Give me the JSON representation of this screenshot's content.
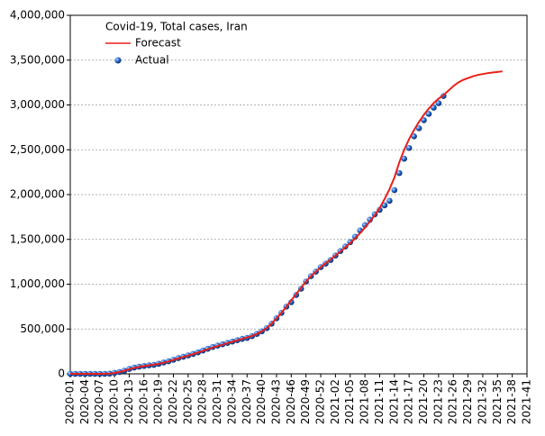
{
  "chart_data": {
    "type": "line_scatter",
    "title": "Covid-19, Total cases, Iran",
    "categories": [
      "2020-01",
      null,
      null,
      "2020-04",
      null,
      null,
      "2020-07",
      null,
      null,
      "2020-10",
      null,
      null,
      "2020-13",
      null,
      null,
      "2020-16",
      null,
      null,
      "2020-19",
      null,
      null,
      "2020-22",
      null,
      null,
      "2020-25",
      null,
      null,
      "2020-28",
      null,
      null,
      "2020-31",
      null,
      null,
      "2020-34",
      null,
      null,
      "2020-37",
      null,
      null,
      "2020-40",
      null,
      null,
      "2020-43",
      null,
      null,
      "2020-46",
      null,
      null,
      "2020-49",
      null,
      null,
      "2020-52",
      null,
      null,
      "2021-02",
      null,
      null,
      "2021-05",
      null,
      null,
      "2021-08",
      null,
      null,
      "2021-11",
      null,
      null,
      "2021-14",
      null,
      null,
      "2021-17",
      null,
      null,
      "2021-20",
      null,
      null,
      "2021-23",
      null,
      null,
      "2021-26",
      null,
      null,
      "2021-29",
      null,
      null,
      "2021-32",
      null,
      null,
      "2021-35",
      null,
      null,
      "2021-38",
      null,
      null,
      "2021-41"
    ],
    "series": [
      {
        "name": "Forecast",
        "kind": "line",
        "color": "#e8201a",
        "values": [
          0,
          0,
          0,
          0,
          0,
          0,
          0,
          0,
          2000,
          10000,
          20000,
          34000,
          52000,
          66000,
          78000,
          87000,
          95000,
          102000,
          112000,
          125000,
          139000,
          155000,
          172000,
          188000,
          204000,
          220000,
          238000,
          256000,
          275000,
          293000,
          310000,
          326000,
          342000,
          358000,
          374000,
          390000,
          405000,
          423000,
          445000,
          475000,
          510000,
          560000,
          620000,
          680000,
          750000,
          820000,
          890000,
          960000,
          1030000,
          1090000,
          1140000,
          1190000,
          1235000,
          1275000,
          1320000,
          1365000,
          1410000,
          1460000,
          1510000,
          1570000,
          1630000,
          1700000,
          1770000,
          1850000,
          1950000,
          2060000,
          2190000,
          2360000,
          2500000,
          2620000,
          2720000,
          2810000,
          2890000,
          2960000,
          3020000,
          3070000,
          3110000,
          3160000,
          3210000,
          3250000,
          3280000,
          3300000,
          3320000,
          3335000,
          3345000,
          3355000,
          3362000,
          3368000,
          3375000,
          null,
          null,
          null,
          null,
          null
        ]
      },
      {
        "name": "Actual",
        "kind": "scatter",
        "color": "#2a6fd6",
        "values": [
          0,
          0,
          0,
          0,
          0,
          0,
          0,
          0,
          2000,
          11000,
          20000,
          35000,
          55000,
          70000,
          80000,
          88000,
          95000,
          100000,
          112000,
          126000,
          140000,
          157000,
          175000,
          190000,
          205000,
          222000,
          240000,
          260000,
          280000,
          300000,
          315000,
          330000,
          345000,
          360000,
          375000,
          390000,
          400000,
          420000,
          445000,
          475000,
          510000,
          560000,
          620000,
          680000,
          750000,
          800000,
          880000,
          950000,
          1030000,
          1090000,
          1140000,
          1190000,
          1230000,
          1270000,
          1320000,
          1370000,
          1420000,
          1470000,
          1530000,
          1600000,
          1660000,
          1720000,
          1780000,
          1830000,
          1880000,
          1930000,
          2050000,
          2240000,
          2400000,
          2520000,
          2650000,
          2740000,
          2830000,
          2900000,
          2970000,
          3020000,
          3100000,
          null,
          null,
          null,
          null,
          null,
          null,
          null,
          null,
          null,
          null,
          null,
          null,
          null,
          null,
          null,
          null,
          null
        ]
      }
    ],
    "ylim": [
      0,
      4000000
    ],
    "yticks": [
      0,
      {
        "value": 500000,
        "label": "500,000"
      },
      {
        "value": 1000000,
        "label": "1,000,000"
      },
      {
        "value": 1500000,
        "label": "1,500,000"
      },
      {
        "value": 2000000,
        "label": "2,000,000"
      },
      {
        "value": 2500000,
        "label": "2,500,000"
      },
      {
        "value": 3000000,
        "label": "3,000,000"
      },
      {
        "value": 3500000,
        "label": "3,500,000"
      },
      {
        "value": 4000000,
        "label": "4,000,000"
      }
    ],
    "grid": true,
    "legend": "upper left"
  }
}
